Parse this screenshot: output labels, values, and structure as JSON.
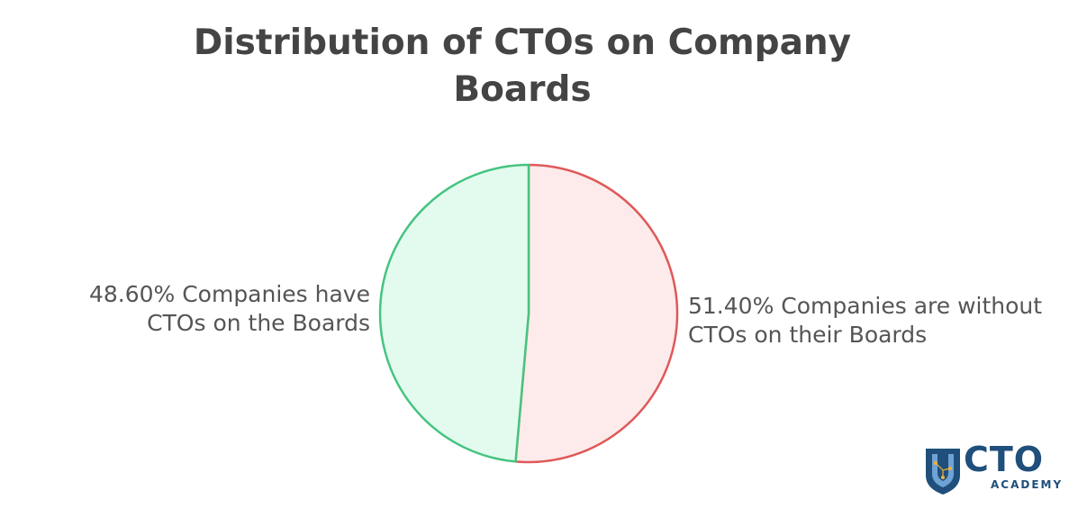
{
  "chart_data": {
    "type": "pie",
    "title_lines": [
      "Distribution of CTOs on Company",
      "Boards"
    ],
    "slices": [
      {
        "value": 51.4,
        "label_lines": [
          "51.40% Companies are without",
          "CTOs on their Boards"
        ],
        "fill": "#fdeaea",
        "stroke": "#e05858"
      },
      {
        "value": 48.6,
        "label_lines": [
          "48.60% Companies have",
          "CTOs on the Boards"
        ],
        "fill": "#e3fbef",
        "stroke": "#45c47f"
      }
    ],
    "start_angle_deg": 0,
    "direction": "clockwise"
  },
  "logo": {
    "word": "CTO",
    "sub": "ACADEMY",
    "icon": "shield-icon",
    "color": "#1f4f7a",
    "accent": "#f2b233"
  }
}
